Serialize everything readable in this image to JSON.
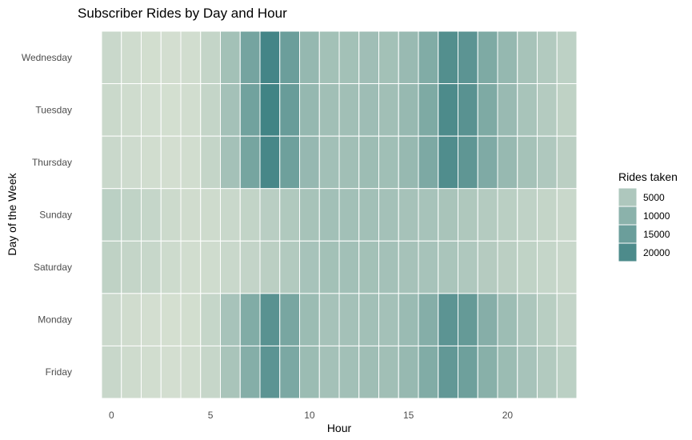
{
  "chart_data": {
    "type": "heatmap",
    "title": "Subscriber Rides by Day and Hour",
    "xlabel": "Hour",
    "ylabel": "Day of the Week",
    "x": [
      0,
      1,
      2,
      3,
      4,
      5,
      6,
      7,
      8,
      9,
      10,
      11,
      12,
      13,
      14,
      15,
      16,
      17,
      18,
      19,
      20,
      21,
      22,
      23
    ],
    "x_ticks": [
      0,
      5,
      10,
      15,
      20
    ],
    "xlim": [
      -0.5,
      23.5
    ],
    "categories": [
      "Wednesday",
      "Tuesday",
      "Thursday",
      "Sunday",
      "Saturday",
      "Monday",
      "Friday"
    ],
    "values": [
      [
        1500,
        900,
        600,
        500,
        700,
        2200,
        6500,
        13500,
        21500,
        15000,
        8500,
        6500,
        6500,
        7000,
        6500,
        8000,
        11500,
        19000,
        17500,
        12000,
        8500,
        6000,
        4500,
        3000
      ],
      [
        1400,
        850,
        550,
        450,
        650,
        2100,
        6300,
        14000,
        22000,
        15500,
        8600,
        6800,
        6800,
        7200,
        6800,
        8200,
        12000,
        20000,
        18000,
        12000,
        8000,
        5800,
        4200,
        2800
      ],
      [
        1600,
        950,
        650,
        500,
        700,
        2200,
        6400,
        13200,
        21000,
        14500,
        8400,
        6700,
        6800,
        7300,
        6900,
        8300,
        12200,
        19500,
        17000,
        11800,
        8300,
        6200,
        4800,
        3300
      ],
      [
        3200,
        2600,
        2000,
        1200,
        800,
        1000,
        1600,
        2400,
        3500,
        4700,
        6000,
        6600,
        6700,
        6600,
        6400,
        6100,
        5900,
        5700,
        4900,
        4200,
        3400,
        2700,
        2100,
        1600
      ],
      [
        2800,
        2200,
        1800,
        1100,
        700,
        900,
        1500,
        2300,
        3300,
        4500,
        5900,
        6500,
        6600,
        6500,
        6300,
        6100,
        5900,
        5500,
        4800,
        4100,
        3300,
        2600,
        2000,
        1500
      ],
      [
        1300,
        800,
        500,
        400,
        600,
        2000,
        5900,
        11500,
        18000,
        13000,
        7600,
        6100,
        6400,
        6700,
        6300,
        7800,
        11000,
        17500,
        16000,
        10800,
        7300,
        5200,
        3600,
        2300
      ],
      [
        1700,
        1000,
        700,
        500,
        650,
        1900,
        5700,
        11000,
        17500,
        12500,
        7600,
        6300,
        6700,
        7100,
        6800,
        8200,
        11500,
        16500,
        14500,
        10500,
        7600,
        5900,
        4500,
        3200
      ]
    ],
    "color_low": "#d9e2d3",
    "color_high": "#3b8082",
    "value_range": [
      0,
      23000
    ],
    "legend": {
      "title": "Rides taken",
      "position": "right",
      "entries": [
        {
          "label": "5000",
          "value": 5000
        },
        {
          "label": "10000",
          "value": 10000
        },
        {
          "label": "15000",
          "value": 15000
        },
        {
          "label": "20000",
          "value": 20000
        }
      ]
    },
    "grid": false
  }
}
